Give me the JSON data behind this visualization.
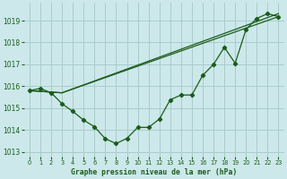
{
  "title": "Graphe pression niveau de la mer (hPa)",
  "bg_color": "#cce8ea",
  "grid_color": "#aacccc",
  "line_color": "#1a5c1a",
  "xlim": [
    -0.5,
    23.5
  ],
  "ylim": [
    1012.8,
    1019.8
  ],
  "yticks": [
    1013,
    1014,
    1015,
    1016,
    1017,
    1018,
    1019
  ],
  "xticks": [
    0,
    1,
    2,
    3,
    4,
    5,
    6,
    7,
    8,
    9,
    10,
    11,
    12,
    13,
    14,
    15,
    16,
    17,
    18,
    19,
    20,
    21,
    22,
    23
  ],
  "series_main": {
    "x": [
      0,
      1,
      2,
      3,
      4,
      5,
      6,
      7,
      8,
      9,
      10,
      11,
      12,
      13,
      14,
      15,
      16,
      17,
      18,
      19,
      20,
      21,
      22,
      23
    ],
    "y": [
      1015.8,
      1015.9,
      1015.7,
      1015.2,
      1014.85,
      1014.45,
      1014.15,
      1013.6,
      1013.38,
      1013.62,
      1014.12,
      1014.12,
      1014.5,
      1015.38,
      1015.6,
      1015.6,
      1016.5,
      1017.0,
      1017.78,
      1017.05,
      1018.6,
      1019.1,
      1019.32,
      1019.18
    ]
  },
  "series_straight1": {
    "x": [
      0,
      3,
      23
    ],
    "y": [
      1015.8,
      1015.7,
      1019.18
    ]
  },
  "series_straight2": {
    "x": [
      0,
      3,
      23
    ],
    "y": [
      1015.8,
      1015.7,
      1019.32
    ]
  }
}
